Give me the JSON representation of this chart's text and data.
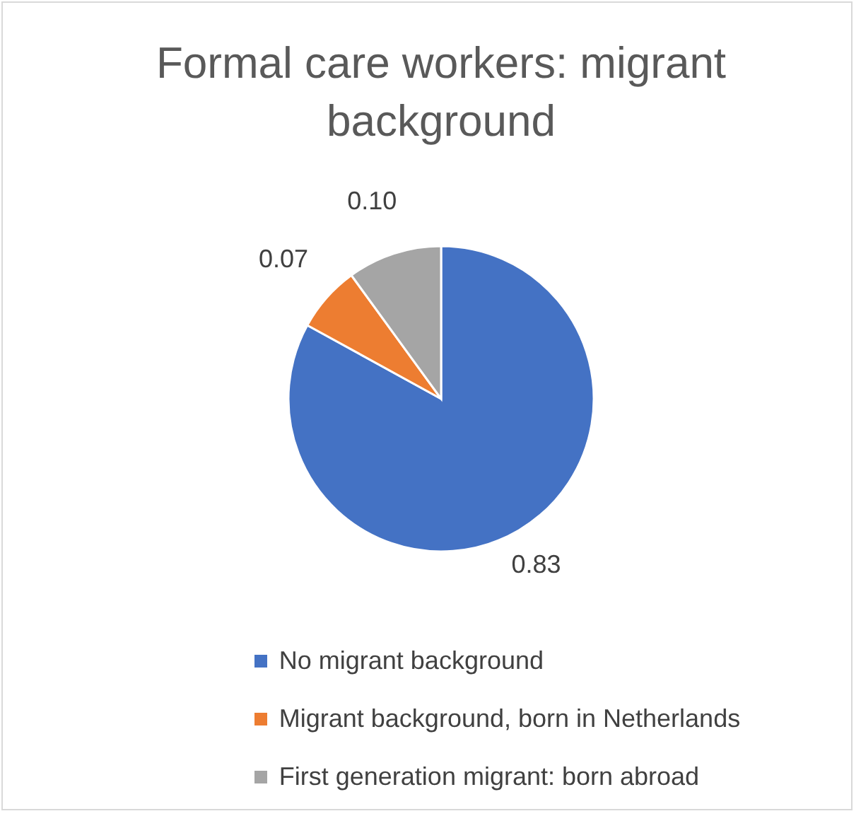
{
  "chart_data": {
    "type": "pie",
    "title": "Formal care workers: migrant background",
    "categories": [
      "No migrant background",
      "Migrant background, born in Netherlands",
      "First generation migrant: born abroad"
    ],
    "values": [
      0.83,
      0.07,
      0.1
    ],
    "colors": [
      "#4472c4",
      "#ed7d31",
      "#a5a5a5"
    ],
    "value_labels": [
      "0.83",
      "0.07",
      "0.10"
    ],
    "legend": "bottom"
  }
}
